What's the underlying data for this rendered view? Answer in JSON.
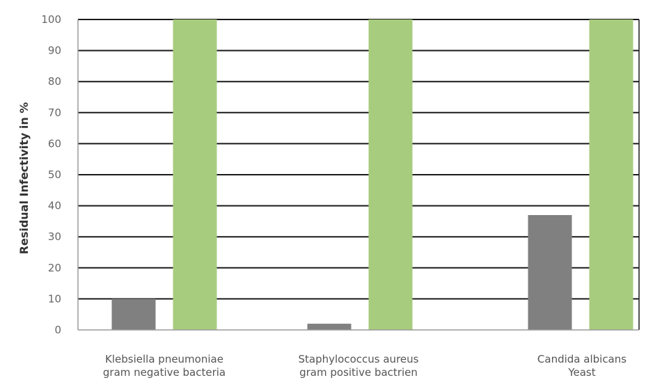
{
  "chart_data": {
    "type": "bar",
    "title": "",
    "xlabel": "",
    "ylabel": "Residual Infectivity in %",
    "ylim": [
      0,
      100
    ],
    "yticks": [
      0,
      10,
      20,
      30,
      40,
      50,
      60,
      70,
      80,
      90,
      100
    ],
    "grid": true,
    "legend": "none",
    "categories": [
      [
        "Klebsiella pneumoniae",
        "gram negative bacteria"
      ],
      [
        "Staphylococcus aureus",
        "gram positive bactrien"
      ],
      [
        "Candida albicans",
        "Yeast"
      ]
    ],
    "series": [
      {
        "color": "#808080",
        "values": [
          10,
          2,
          37
        ]
      },
      {
        "color": "#a8cc7e",
        "values": [
          100,
          100,
          100
        ]
      }
    ]
  }
}
